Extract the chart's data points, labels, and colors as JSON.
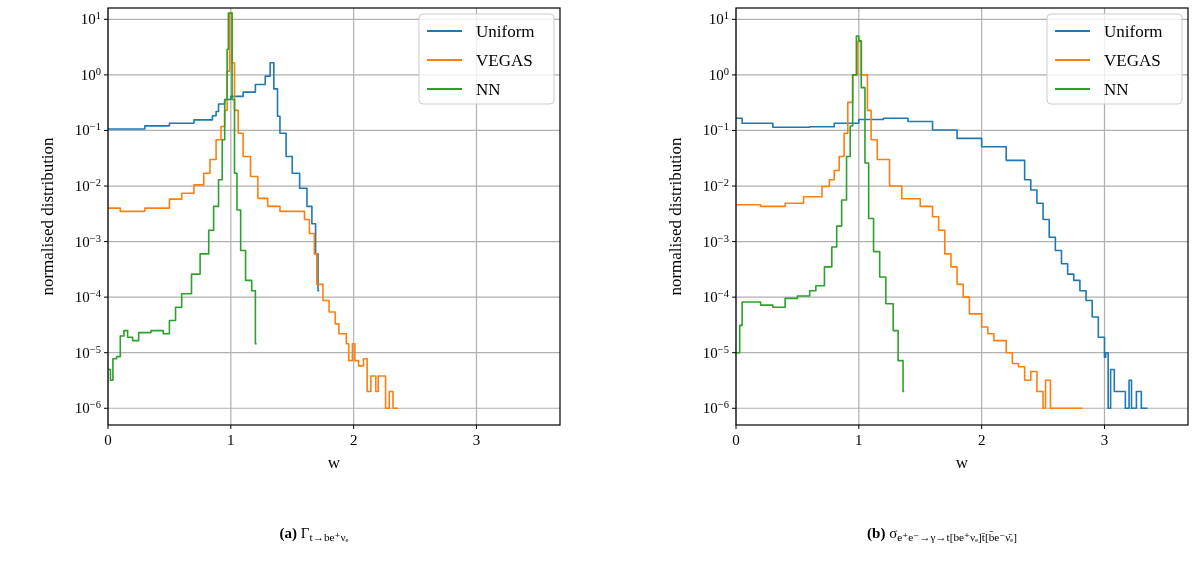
{
  "chart_data": [
    {
      "type": "step",
      "title": "(a) Γ$_{t→be⁺νₑ}$",
      "xlabel": "w",
      "ylabel": "normalised distribution",
      "log": "y",
      "grid": true,
      "legend": "top right",
      "xlim": [
        0,
        3.68
      ],
      "xticks": [
        0,
        1,
        2,
        3
      ],
      "ylim": [
        5e-07,
        16
      ],
      "yticks": [
        {
          "value": 1e-06,
          "label": "10$^{−6}$"
        },
        {
          "value": 1e-05,
          "label": "10$^{−5}$"
        },
        {
          "value": 0.0001,
          "label": "10$^{−4}$"
        },
        {
          "value": 0.001,
          "label": "10$^{−3}$"
        },
        {
          "value": 0.01,
          "label": "10$^{−2}$"
        },
        {
          "value": 0.1,
          "label": "10$^{−1}$"
        },
        {
          "value": 1,
          "label": "10$^{0}$"
        },
        {
          "value": 10,
          "label": "10$^{1}$"
        }
      ],
      "series": [
        {
          "name": "Uniform",
          "color": "#1f77b4",
          "x": [
            0,
            0.3,
            0.5,
            0.7,
            0.85,
            0.88,
            0.9,
            0.95,
            1.0,
            1.1,
            1.2,
            1.28,
            1.32,
            1.35,
            1.38,
            1.4,
            1.45,
            1.5,
            1.56,
            1.62,
            1.66,
            1.69,
            1.71,
            1.72
          ],
          "values": [
            0.106,
            0.121,
            0.135,
            0.155,
            0.184,
            0.22,
            0.3,
            0.36,
            0.41,
            0.49,
            0.67,
            0.95,
            1.65,
            0.56,
            0.18,
            0.089,
            0.034,
            0.017,
            0.0091,
            0.0043,
            0.0021,
            0.0006,
            0.00013,
            0.00013
          ]
        },
        {
          "name": "VEGAS",
          "color": "#ff7f0e",
          "x": [
            0,
            0.1,
            0.3,
            0.5,
            0.6,
            0.7,
            0.78,
            0.83,
            0.88,
            0.92,
            0.95,
            0.97,
            0.99,
            1.01,
            1.03,
            1.06,
            1.1,
            1.16,
            1.22,
            1.3,
            1.4,
            1.6,
            1.64,
            1.68,
            1.7,
            1.75,
            1.8,
            1.85,
            1.88,
            1.94,
            1.96,
            1.99,
            2.01,
            2.04,
            2.08,
            2.11,
            2.14,
            2.18,
            2.2,
            2.26,
            2.29,
            2.32,
            2.36
          ],
          "values": [
            0.004,
            0.0035,
            0.004,
            0.0058,
            0.0074,
            0.0105,
            0.017,
            0.03,
            0.068,
            0.118,
            0.23,
            1.16,
            13,
            1.65,
            0.23,
            0.089,
            0.034,
            0.0148,
            0.006,
            0.0043,
            0.0035,
            0.0025,
            0.0014,
            0.0006,
            0.00017,
            8.7e-05,
            5.4e-05,
            3.3e-05,
            2.2e-05,
            1.45e-05,
            7.2e-06,
            1.45e-05,
            7.2e-06,
            5.8e-06,
            7.8e-06,
            2e-06,
            3.8e-06,
            2e-06,
            3.8e-06,
            1e-06,
            2e-06,
            1e-06,
            1e-06
          ]
        },
        {
          "name": "NN",
          "color": "#2ca02c",
          "x": [
            0,
            0.02,
            0.04,
            0.07,
            0.1,
            0.13,
            0.16,
            0.2,
            0.25,
            0.35,
            0.45,
            0.5,
            0.55,
            0.6,
            0.68,
            0.75,
            0.82,
            0.86,
            0.9,
            0.93,
            0.95,
            0.97,
            0.98,
            1.01,
            1.03,
            1.05,
            1.08,
            1.12,
            1.17,
            1.2,
            1.21
          ],
          "values": [
            5e-06,
            3.2e-06,
            7.8e-06,
            8.5e-06,
            2e-05,
            2.5e-05,
            1.9e-05,
            1.65e-05,
            2.3e-05,
            2.5e-05,
            2.2e-05,
            3.8e-05,
            6.6e-05,
            0.000115,
            0.00026,
            0.0006,
            0.0016,
            0.0043,
            0.013,
            0.068,
            0.36,
            2.9,
            13,
            0.36,
            0.017,
            0.0037,
            0.00069,
            0.0002,
            0.00013,
            1.45e-05,
            1.45e-05
          ]
        }
      ]
    },
    {
      "type": "step",
      "title": "(b) σ$_{e⁺e⁻→γ→t[be⁺νₑ]t̄[b̄e⁻ν̄ₑ]}$",
      "xlabel": "w",
      "ylabel": "normalised distribution",
      "log": "y",
      "grid": true,
      "legend": "top right",
      "xlim": [
        0,
        3.68
      ],
      "xticks": [
        0,
        1,
        2,
        3
      ],
      "ylim": [
        5e-07,
        16
      ],
      "yticks": [
        {
          "value": 1e-06,
          "label": "10$^{−6}$"
        },
        {
          "value": 1e-05,
          "label": "10$^{−5}$"
        },
        {
          "value": 0.0001,
          "label": "10$^{−4}$"
        },
        {
          "value": 0.001,
          "label": "10$^{−3}$"
        },
        {
          "value": 0.01,
          "label": "10$^{−2}$"
        },
        {
          "value": 0.1,
          "label": "10$^{−1}$"
        },
        {
          "value": 1,
          "label": "10$^{0}$"
        },
        {
          "value": 10,
          "label": "10$^{1}$"
        }
      ],
      "series": [
        {
          "name": "Uniform",
          "color": "#1f77b4",
          "x": [
            0,
            0.05,
            0.3,
            0.6,
            0.8,
            1.0,
            1.2,
            1.4,
            1.6,
            1.8,
            2.0,
            2.2,
            2.35,
            2.4,
            2.45,
            2.5,
            2.55,
            2.6,
            2.65,
            2.7,
            2.75,
            2.8,
            2.85,
            2.9,
            2.95,
            3.0,
            3.01,
            3.03,
            3.05,
            3.08,
            3.17,
            3.2,
            3.22,
            3.26,
            3.3,
            3.35
          ],
          "values": [
            0.166,
            0.135,
            0.114,
            0.117,
            0.135,
            0.158,
            0.166,
            0.145,
            0.102,
            0.072,
            0.051,
            0.029,
            0.013,
            0.0085,
            0.0049,
            0.0025,
            0.0012,
            0.00069,
            0.0004,
            0.00026,
            0.0002,
            0.00013,
            8.7e-05,
            4.4e-05,
            1.9e-05,
            8.3e-06,
            1e-05,
            1e-06,
            5e-06,
            2e-06,
            1e-06,
            3.2e-06,
            1e-06,
            2e-06,
            1e-06,
            1e-06
          ]
        },
        {
          "name": "VEGAS",
          "color": "#ff7f0e",
          "x": [
            0,
            0.2,
            0.4,
            0.55,
            0.7,
            0.76,
            0.8,
            0.84,
            0.88,
            0.91,
            0.95,
            0.99,
            1.02,
            1.07,
            1.1,
            1.15,
            1.25,
            1.35,
            1.5,
            1.6,
            1.65,
            1.7,
            1.75,
            1.8,
            1.85,
            1.9,
            2.0,
            2.05,
            2.1,
            2.2,
            2.25,
            2.3,
            2.35,
            2.4,
            2.45,
            2.5,
            2.52,
            2.56,
            2.82
          ],
          "values": [
            0.0046,
            0.0043,
            0.0049,
            0.0064,
            0.0098,
            0.013,
            0.019,
            0.034,
            0.089,
            0.32,
            1,
            4,
            1,
            0.23,
            0.068,
            0.03,
            0.01,
            0.0059,
            0.0043,
            0.0028,
            0.0016,
            0.0006,
            0.00035,
            0.00017,
            0.0001,
            5e-05,
            2.9e-05,
            2.2e-05,
            1.65e-05,
            1e-05,
            6.4e-06,
            5.6e-06,
            3.2e-06,
            4.6e-06,
            2e-06,
            1e-06,
            3.2e-06,
            1e-06,
            1e-06
          ]
        },
        {
          "name": "NN",
          "color": "#2ca02c",
          "x": [
            0,
            0.03,
            0.05,
            0.2,
            0.3,
            0.4,
            0.5,
            0.6,
            0.65,
            0.72,
            0.78,
            0.82,
            0.86,
            0.9,
            0.93,
            0.95,
            0.98,
            1.0,
            1.02,
            1.05,
            1.08,
            1.12,
            1.17,
            1.22,
            1.28,
            1.32,
            1.36,
            1.37
          ],
          "values": [
            1e-05,
            3.1e-05,
            8.2e-05,
            7.2e-05,
            6.6e-05,
            9.5e-05,
            0.000105,
            0.00013,
            0.00016,
            0.00035,
            0.0008,
            0.0019,
            0.0056,
            0.034,
            0.12,
            1,
            5,
            4.1,
            0.59,
            0.026,
            0.0026,
            0.00066,
            0.00023,
            7.6e-05,
            2.5e-05,
            7.2e-06,
            2e-06,
            2e-06
          ]
        }
      ]
    }
  ]
}
